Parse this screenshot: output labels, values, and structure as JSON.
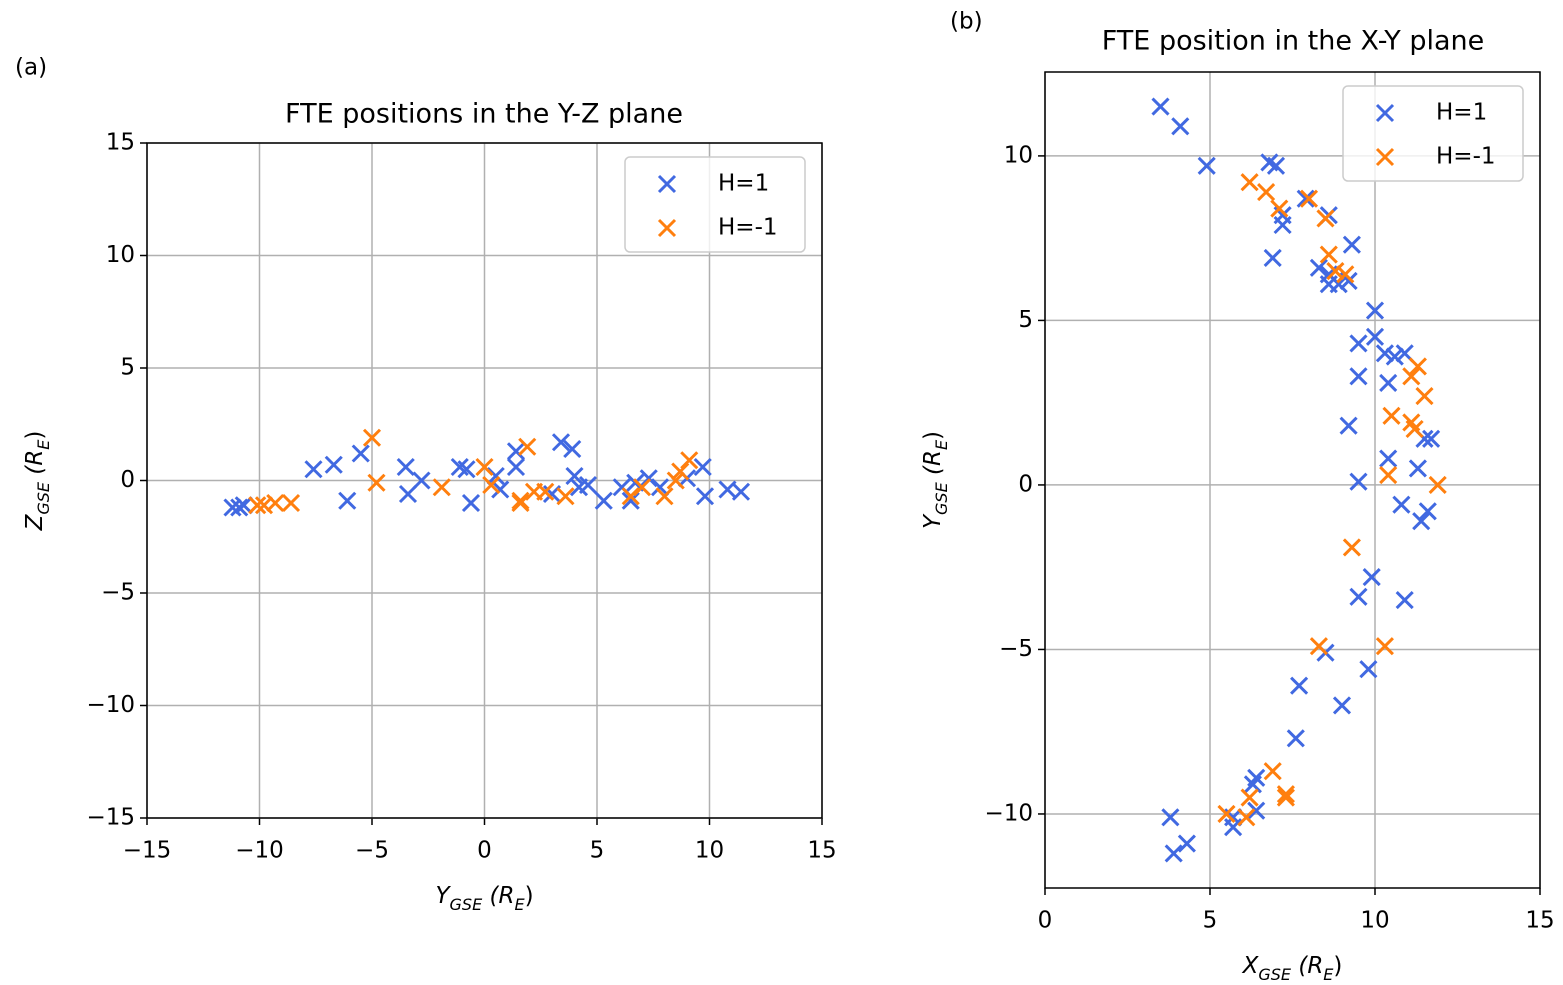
{
  "chart_data": [
    {
      "type": "scatter",
      "panel_label": "(a)",
      "title": "FTE positions in the Y-Z plane",
      "xlabel": [
        {
          "text": "Y"
        },
        {
          "text": "GSE",
          "sub": true
        },
        {
          "text": " (R"
        },
        {
          "text": "E",
          "sub": true
        },
        {
          "text": ")"
        }
      ],
      "ylabel": [
        {
          "text": "Z"
        },
        {
          "text": "GSE",
          "sub": true
        },
        {
          "text": " (R"
        },
        {
          "text": "E",
          "sub": true
        },
        {
          "text": ")"
        }
      ],
      "xlim": [
        -15,
        15
      ],
      "ylim": [
        -15,
        15
      ],
      "xticks": [
        {
          "value": -15,
          "label": "−15"
        },
        {
          "value": -10,
          "label": "−10"
        },
        {
          "value": -5,
          "label": "−5"
        },
        0,
        5,
        10,
        15
      ],
      "yticks": [
        {
          "value": -15,
          "label": "−15"
        },
        {
          "value": -10,
          "label": "−10"
        },
        {
          "value": -5,
          "label": "−5"
        },
        0,
        5,
        10,
        15
      ],
      "grid": true,
      "legend": "upper right",
      "series": [
        {
          "name": "H=1",
          "color": "#4169e1",
          "x": [
            -11.2,
            -10.7,
            -10.9,
            -7.6,
            -6.7,
            -6.1,
            -5.5,
            -3.5,
            -3.4,
            -2.8,
            -1.1,
            -0.8,
            -0.6,
            0.5,
            0.7,
            1.4,
            1.4,
            3.4,
            3.9,
            4.0,
            4.2,
            4.6,
            5.3,
            6.1,
            6.5,
            6.7,
            7.3,
            7.8,
            9.0,
            9.7,
            9.8,
            10.8,
            11.4,
            3.0
          ],
          "y": [
            -1.2,
            -1.1,
            -1.2,
            0.5,
            0.7,
            -0.9,
            1.2,
            0.6,
            -0.6,
            0.0,
            0.6,
            0.5,
            -1.0,
            0.2,
            -0.4,
            1.3,
            0.6,
            1.7,
            1.4,
            0.2,
            -0.3,
            -0.2,
            -0.9,
            -0.3,
            -0.9,
            -0.1,
            0.1,
            -0.3,
            0.1,
            0.6,
            -0.7,
            -0.4,
            -0.5,
            -0.6
          ]
        },
        {
          "name": "H=-1",
          "color": "#ff7f0e",
          "x": [
            -10.1,
            -9.8,
            -9.3,
            -8.6,
            -5.0,
            -4.8,
            -1.9,
            0.0,
            0.3,
            1.6,
            1.9,
            2.2,
            2.7,
            3.6,
            6.5,
            7.0,
            8.0,
            8.5,
            8.7,
            9.1,
            1.6
          ],
          "y": [
            -1.1,
            -1.1,
            -1.0,
            -1.0,
            1.9,
            -0.1,
            -0.3,
            0.6,
            -0.2,
            -0.9,
            1.5,
            -0.5,
            -0.5,
            -0.7,
            -0.7,
            -0.3,
            -0.7,
            0.0,
            0.4,
            0.9,
            -1.0
          ]
        }
      ]
    },
    {
      "type": "scatter",
      "panel_label": "(b)",
      "title": "FTE position in the X-Y plane",
      "xlabel": [
        {
          "text": "X"
        },
        {
          "text": "GSE",
          "sub": true
        },
        {
          "text": " (R"
        },
        {
          "text": "E",
          "sub": true
        },
        {
          "text": ")"
        }
      ],
      "ylabel": [
        {
          "text": "Y"
        },
        {
          "text": "GSE",
          "sub": true
        },
        {
          "text": " (R"
        },
        {
          "text": "E",
          "sub": true
        },
        {
          "text": ")"
        }
      ],
      "xlim": [
        0,
        15
      ],
      "ylim": [
        -12.25,
        12.55
      ],
      "xticks": [
        0,
        5,
        10,
        15
      ],
      "yticks": [
        {
          "value": -10,
          "label": "−10"
        },
        {
          "value": -5,
          "label": "−5"
        },
        0,
        5,
        10
      ],
      "grid": true,
      "legend": "upper right",
      "series": [
        {
          "name": "H=1",
          "color": "#4169e1",
          "x": [
            3.5,
            4.1,
            4.9,
            6.8,
            7.0,
            7.2,
            7.2,
            6.9,
            7.9,
            8.6,
            8.3,
            8.6,
            8.6,
            8.9,
            9.2,
            9.3,
            10.0,
            10.0,
            9.5,
            9.5,
            10.3,
            10.6,
            10.9,
            10.4,
            9.2,
            10.4,
            11.3,
            11.7,
            11.5,
            9.5,
            10.8,
            11.6,
            11.4,
            9.9,
            9.5,
            10.9,
            8.5,
            9.8,
            7.7,
            9.0,
            7.6,
            6.4,
            6.3,
            5.7,
            5.7,
            6.4,
            3.8,
            3.9,
            4.3
          ],
          "y": [
            11.5,
            10.9,
            9.7,
            9.8,
            9.7,
            8.2,
            7.9,
            6.9,
            8.7,
            8.2,
            6.6,
            6.4,
            6.1,
            6.1,
            6.2,
            7.3,
            5.3,
            4.5,
            4.3,
            3.3,
            4.0,
            3.9,
            4.0,
            3.1,
            1.8,
            0.8,
            0.5,
            1.4,
            1.4,
            0.1,
            -0.6,
            -0.8,
            -1.1,
            -2.8,
            -3.4,
            -3.5,
            -5.1,
            -5.6,
            -6.1,
            -6.7,
            -7.7,
            -8.9,
            -9.1,
            -10.1,
            -10.4,
            -9.9,
            -10.1,
            -11.2,
            -10.9
          ]
        },
        {
          "name": "H=-1",
          "color": "#ff7f0e",
          "x": [
            6.2,
            6.7,
            7.1,
            8.0,
            8.5,
            8.6,
            8.8,
            9.1,
            11.3,
            11.1,
            11.5,
            10.5,
            11.1,
            11.2,
            10.4,
            11.9,
            9.3,
            8.3,
            10.3,
            6.9,
            7.3,
            7.3,
            6.2,
            5.5,
            6.1
          ],
          "y": [
            9.2,
            8.9,
            8.4,
            8.7,
            8.1,
            7.0,
            6.5,
            6.4,
            3.6,
            3.3,
            2.7,
            2.1,
            1.9,
            1.7,
            0.3,
            0.0,
            -1.9,
            -4.9,
            -4.9,
            -8.7,
            -9.4,
            -9.5,
            -9.5,
            -10.0,
            -10.1
          ]
        }
      ]
    }
  ]
}
